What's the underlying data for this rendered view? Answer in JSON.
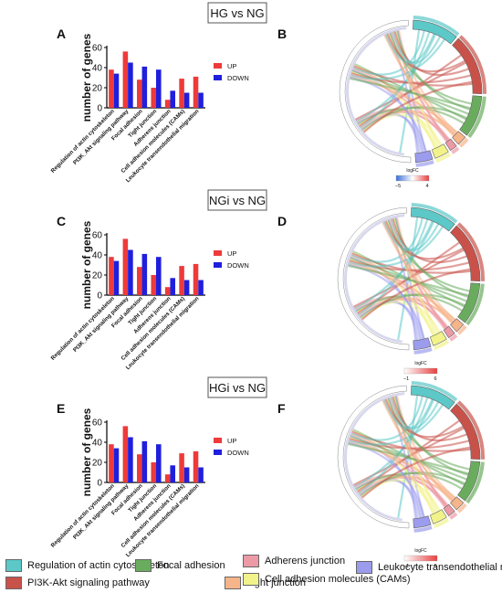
{
  "panels": [
    {
      "letter": "A",
      "title": "HG vs NG",
      "chord_letter": "B",
      "logfc_label": "logFC",
      "scale_min": "−5",
      "scale_max": "4"
    },
    {
      "letter": "C",
      "title": "NGi vs NG",
      "chord_letter": "D",
      "logfc_label": "logFC",
      "scale_min": "−1",
      "scale_max": "6"
    },
    {
      "letter": "E",
      "title": "HGi vs NG",
      "chord_letter": "F",
      "logfc_label": "logFC",
      "scale_min": "−1",
      "scale_max": "6"
    }
  ],
  "chart_data": [
    {
      "type": "bar",
      "ylabel": "number of genes",
      "ylim": [
        0,
        60
      ],
      "yticks": [
        0,
        20,
        40,
        60
      ],
      "legend_position": "right",
      "categories": [
        "Regulation of actin cytoskeleton",
        "PI3K_Akt signaling pathway",
        "Focal adhesion",
        "Tight junction",
        "Adherens junction",
        "Cell adhesion molecules (CAMs)",
        "Leukocyte transendothelial migration"
      ],
      "series": [
        {
          "name": "UP",
          "color": "#ee3a3a",
          "values": [
            38,
            56,
            28,
            20,
            8,
            29,
            31
          ]
        },
        {
          "name": "DOWN",
          "color": "#1f1fdd",
          "values": [
            34,
            45,
            41,
            38,
            17,
            15,
            15
          ]
        }
      ]
    },
    {
      "type": "bar",
      "ylabel": "number of genes",
      "ylim": [
        0,
        60
      ],
      "yticks": [
        0,
        20,
        40,
        60
      ],
      "legend_position": "right",
      "categories": [
        "Regulation of actin cytoskeleton",
        "PI3K_Akt signaling pathway",
        "Focal adhesion",
        "Tight junction",
        "Adherens junction",
        "Cell adhesion molecules (CAMs)",
        "Leukocyte transendothelial migration"
      ],
      "series": [
        {
          "name": "UP",
          "color": "#ee3a3a",
          "values": [
            38,
            56,
            28,
            20,
            8,
            29,
            31
          ]
        },
        {
          "name": "DOWN",
          "color": "#1f1fdd",
          "values": [
            34,
            45,
            41,
            38,
            17,
            15,
            15
          ]
        }
      ]
    },
    {
      "type": "bar",
      "ylabel": "number of genes",
      "ylim": [
        0,
        60
      ],
      "yticks": [
        0,
        20,
        40,
        60
      ],
      "legend_position": "right",
      "categories": [
        "Regulation of actin cytoskeleton",
        "PI3K_Akt signaling pathway",
        "Focal adhesion",
        "Tight junction",
        "Adherens junction",
        "Cell adhesion molecules (CAMs)",
        "Leukocyte transendothelial migration"
      ],
      "series": [
        {
          "name": "UP",
          "color": "#ee3a3a",
          "values": [
            38,
            56,
            28,
            20,
            8,
            29,
            31
          ]
        },
        {
          "name": "DOWN",
          "color": "#1f1fdd",
          "values": [
            34,
            45,
            41,
            38,
            17,
            15,
            15
          ]
        }
      ]
    }
  ],
  "pathway_legend": [
    {
      "label": "Regulation of actin cytoskeleton",
      "color": "#5cc8c8"
    },
    {
      "label": "PI3K-Akt signaling pathway",
      "color": "#c8524a"
    },
    {
      "label": "Focal adhesion",
      "color": "#6aac5e"
    },
    {
      "label": "Tight junction",
      "color": "#f6b48a"
    },
    {
      "label": "Adherens junction",
      "color": "#ec9aa6"
    },
    {
      "label": "Cell adhesion molecules (CAMs)",
      "color": "#f2f28a"
    },
    {
      "label": "Leukocyte transendothelial migration",
      "color": "#9c9cee"
    }
  ]
}
